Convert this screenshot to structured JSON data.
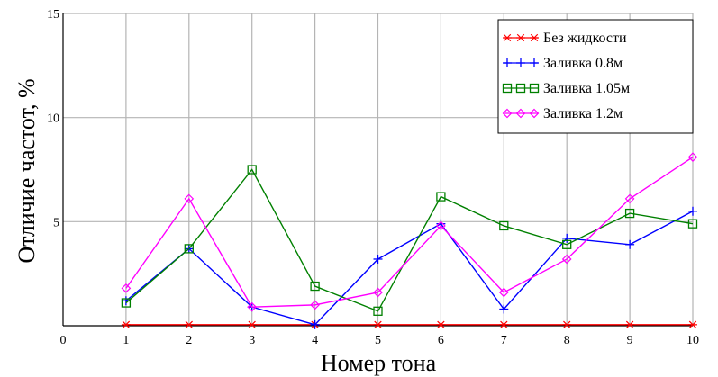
{
  "chart_data": {
    "type": "line",
    "xlabel": "Номер тона",
    "ylabel": "Отличие частот, %",
    "xlim": [
      0,
      10
    ],
    "ylim": [
      0,
      15
    ],
    "xticks": [
      "0",
      "1",
      "2",
      "3",
      "4",
      "5",
      "6",
      "7",
      "8",
      "9",
      "10"
    ],
    "yticks": [
      "5",
      "10",
      "15"
    ],
    "grid": true,
    "legend_position": "top-right",
    "x": [
      1,
      2,
      3,
      4,
      5,
      6,
      7,
      8,
      9,
      10
    ],
    "series": [
      {
        "name": "Без жидкости",
        "color": "#ff0000",
        "marker": "asterisk",
        "values": [
          0.05,
          0.05,
          0.05,
          0.05,
          0.05,
          0.05,
          0.05,
          0.05,
          0.05,
          0.05
        ]
      },
      {
        "name": "Заливка 0.8м",
        "color": "#0000ff",
        "marker": "plus",
        "values": [
          1.2,
          3.7,
          0.9,
          0.05,
          3.2,
          4.9,
          0.8,
          4.2,
          3.9,
          5.5
        ]
      },
      {
        "name": "Заливка 1.05м",
        "color": "#008000",
        "marker": "square",
        "values": [
          1.1,
          3.7,
          7.5,
          1.9,
          0.7,
          6.2,
          4.8,
          3.9,
          5.4,
          4.9
        ]
      },
      {
        "name": "Заливка 1.2м",
        "color": "#ff00ff",
        "marker": "diamond",
        "values": [
          1.8,
          6.1,
          0.9,
          1.0,
          1.6,
          4.8,
          1.6,
          3.2,
          6.1,
          8.1
        ]
      }
    ]
  }
}
